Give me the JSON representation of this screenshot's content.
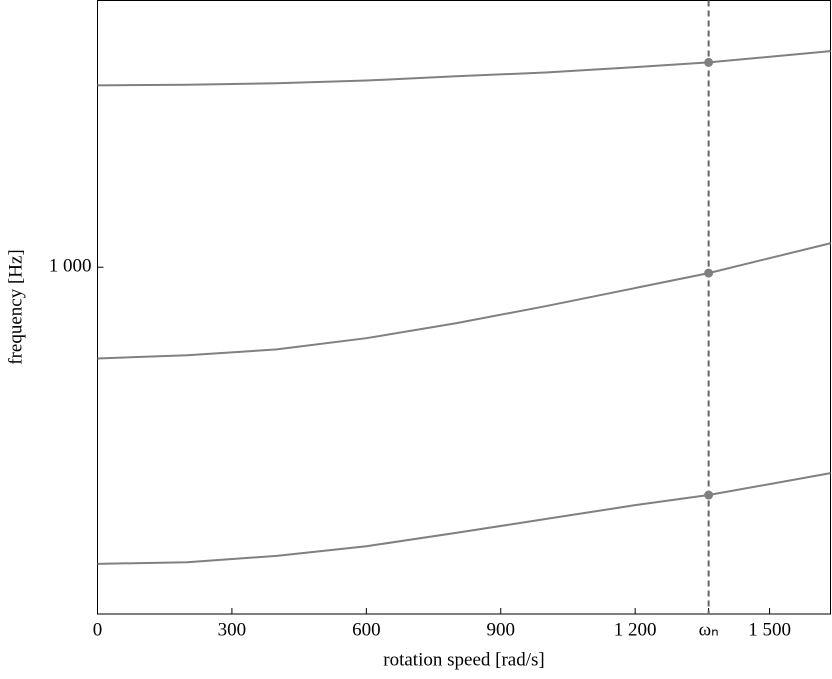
{
  "chart_data": {
    "type": "line",
    "xlabel": "rotation speed [rad/s]",
    "ylabel": "frequency [Hz]",
    "x": [
      0,
      200,
      400,
      600,
      800,
      1000,
      1200,
      1364,
      1636
    ],
    "series": [
      {
        "color": "#808080",
        "values": [
          1341,
          1342,
          1345,
          1350,
          1358,
          1365,
          1375,
          1384,
          1405
        ]
      },
      {
        "color": "#808080",
        "values": [
          829,
          835,
          846,
          867,
          895,
          927,
          961,
          989,
          1045
        ]
      },
      {
        "color": "#808080",
        "values": [
          444,
          447,
          459,
          477,
          502,
          528,
          554,
          573,
          614
        ]
      }
    ],
    "vline": 1364,
    "xlim": [
      0,
      1636
    ],
    "ylim": [
      350,
      1500
    ],
    "xticks": [
      0,
      300,
      600,
      900,
      {
        "value": 1200,
        "label": "1 200"
      },
      {
        "value": 1364,
        "label": "ωₙ"
      },
      {
        "value": 1500,
        "label": "1 500"
      }
    ],
    "yticks": [
      {
        "value": 1000,
        "label": "1 000"
      }
    ]
  }
}
